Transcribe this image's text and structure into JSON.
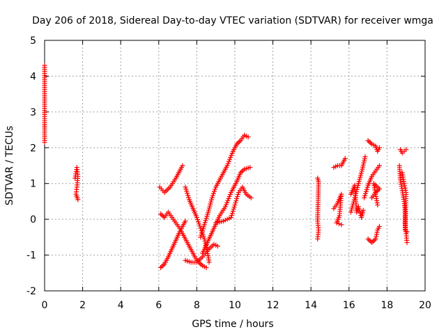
{
  "chart_data": {
    "type": "scatter",
    "title": "Day 206 of 2018, Sidereal Day-to-day VTEC variation (SDTVAR) for receiver wmga",
    "xlabel": "GPS time / hours",
    "ylabel": "SDTVAR / TECUs",
    "xlim": [
      0,
      20
    ],
    "ylim": [
      -2,
      5
    ],
    "xticks": [
      "0",
      "2",
      "4",
      "6",
      "8",
      "10",
      "12",
      "14",
      "16",
      "18",
      "20"
    ],
    "yticks": [
      "-2",
      "-1",
      "0",
      "1",
      "2",
      "3",
      "4",
      "5"
    ],
    "grid": true,
    "marker": "+",
    "colors": {
      "series": "#ff0000",
      "grid": "#a0a0a0",
      "axes": "#000000"
    },
    "segments": [
      [
        [
          0.0,
          4.3
        ],
        [
          0.0,
          3.8
        ],
        [
          0.0,
          3.1
        ],
        [
          0.0,
          2.65
        ],
        [
          0.0,
          2.55
        ],
        [
          0.0,
          2.15
        ]
      ],
      [
        [
          1.6,
          1.15
        ],
        [
          1.7,
          1.45
        ],
        [
          1.75,
          1.2
        ],
        [
          1.7,
          0.9
        ],
        [
          1.65,
          0.7
        ],
        [
          1.75,
          0.55
        ]
      ],
      [
        [
          6.05,
          0.9
        ],
        [
          6.3,
          0.75
        ],
        [
          6.6,
          0.9
        ],
        [
          6.9,
          1.15
        ],
        [
          7.15,
          1.4
        ],
        [
          7.25,
          1.5
        ]
      ],
      [
        [
          6.1,
          -1.35
        ],
        [
          6.3,
          -1.25
        ],
        [
          6.5,
          -1.05
        ],
        [
          6.8,
          -0.7
        ],
        [
          7.1,
          -0.35
        ],
        [
          7.4,
          -0.05
        ]
      ],
      [
        [
          6.1,
          0.15
        ],
        [
          6.3,
          0.05
        ],
        [
          6.5,
          0.2
        ],
        [
          6.7,
          0.05
        ],
        [
          6.9,
          -0.1
        ],
        [
          7.1,
          -0.25
        ],
        [
          7.3,
          -0.45
        ],
        [
          7.5,
          -0.65
        ],
        [
          7.7,
          -0.85
        ],
        [
          7.9,
          -1.05
        ],
        [
          8.1,
          -1.2
        ],
        [
          8.3,
          -1.3
        ],
        [
          8.5,
          -1.35
        ]
      ],
      [
        [
          7.4,
          0.9
        ],
        [
          7.6,
          0.55
        ],
        [
          7.8,
          0.3
        ],
        [
          8.0,
          0.05
        ],
        [
          8.2,
          -0.25
        ],
        [
          8.4,
          -0.55
        ],
        [
          8.55,
          -0.9
        ],
        [
          8.65,
          -1.2
        ]
      ],
      [
        [
          7.4,
          -1.15
        ],
        [
          7.7,
          -1.2
        ],
        [
          8.0,
          -1.2
        ],
        [
          8.3,
          -1.05
        ],
        [
          8.6,
          -0.85
        ],
        [
          8.9,
          -0.7
        ],
        [
          9.1,
          -0.75
        ]
      ],
      [
        [
          8.2,
          -0.5
        ],
        [
          8.4,
          -0.15
        ],
        [
          8.6,
          0.2
        ],
        [
          8.8,
          0.6
        ],
        [
          9.0,
          0.9
        ],
        [
          9.3,
          1.2
        ],
        [
          9.6,
          1.5
        ],
        [
          9.9,
          1.9
        ],
        [
          10.1,
          2.1
        ],
        [
          10.3,
          2.2
        ],
        [
          10.5,
          2.35
        ],
        [
          10.7,
          2.3
        ]
      ],
      [
        [
          8.3,
          -0.95
        ],
        [
          8.6,
          -0.6
        ],
        [
          8.9,
          -0.25
        ],
        [
          9.2,
          0.1
        ],
        [
          9.5,
          0.35
        ],
        [
          9.8,
          0.75
        ],
        [
          10.1,
          1.05
        ],
        [
          10.3,
          1.3
        ],
        [
          10.5,
          1.4
        ],
        [
          10.8,
          1.45
        ]
      ],
      [
        [
          9.0,
          -0.1
        ],
        [
          9.4,
          -0.05
        ],
        [
          9.8,
          0.05
        ],
        [
          10.0,
          0.4
        ],
        [
          10.2,
          0.75
        ],
        [
          10.4,
          0.9
        ],
        [
          10.6,
          0.7
        ],
        [
          10.85,
          0.6
        ]
      ],
      [
        [
          14.35,
          1.15
        ],
        [
          14.4,
          1.05
        ],
        [
          14.35,
          -0.05
        ],
        [
          14.4,
          -0.3
        ],
        [
          14.35,
          -0.55
        ]
      ],
      [
        [
          15.2,
          1.45
        ],
        [
          15.4,
          1.5
        ],
        [
          15.6,
          1.5
        ],
        [
          15.8,
          1.7
        ]
      ],
      [
        [
          15.2,
          0.3
        ],
        [
          15.4,
          0.45
        ],
        [
          15.6,
          0.7
        ],
        [
          15.5,
          0.1
        ],
        [
          15.35,
          -0.1
        ],
        [
          15.6,
          -0.15
        ]
      ],
      [
        [
          16.1,
          0.2
        ],
        [
          16.3,
          0.6
        ],
        [
          16.5,
          1.0
        ],
        [
          16.7,
          1.4
        ],
        [
          16.85,
          1.75
        ]
      ],
      [
        [
          16.1,
          0.7
        ],
        [
          16.3,
          0.95
        ],
        [
          16.4,
          0.2
        ],
        [
          16.5,
          0.35
        ],
        [
          16.65,
          0.05
        ],
        [
          16.75,
          0.25
        ]
      ],
      [
        [
          16.8,
          0.6
        ],
        [
          17.0,
          0.95
        ],
        [
          17.2,
          1.2
        ],
        [
          17.4,
          1.35
        ],
        [
          17.6,
          1.5
        ]
      ],
      [
        [
          17.0,
          2.2
        ],
        [
          17.2,
          2.1
        ],
        [
          17.4,
          2.05
        ],
        [
          17.5,
          1.9
        ],
        [
          17.6,
          2.0
        ]
      ],
      [
        [
          17.0,
          -0.55
        ],
        [
          17.2,
          -0.65
        ],
        [
          17.4,
          -0.55
        ],
        [
          17.5,
          -0.3
        ],
        [
          17.6,
          -0.2
        ]
      ],
      [
        [
          17.2,
          0.6
        ],
        [
          17.4,
          0.75
        ],
        [
          17.6,
          0.85
        ],
        [
          17.3,
          1.0
        ],
        [
          17.5,
          0.4
        ]
      ],
      [
        [
          18.7,
          1.95
        ],
        [
          18.8,
          1.85
        ],
        [
          18.9,
          1.9
        ],
        [
          19.0,
          1.95
        ]
      ],
      [
        [
          18.65,
          1.5
        ],
        [
          18.7,
          1.1
        ],
        [
          18.8,
          0.8
        ],
        [
          18.9,
          0.5
        ],
        [
          18.95,
          0.2
        ],
        [
          18.95,
          -0.1
        ],
        [
          19.0,
          -0.4
        ],
        [
          19.05,
          -0.65
        ]
      ],
      [
        [
          18.8,
          1.3
        ],
        [
          18.9,
          1.0
        ],
        [
          19.0,
          0.75
        ],
        [
          18.95,
          -0.3
        ],
        [
          19.05,
          -0.35
        ]
      ]
    ]
  }
}
